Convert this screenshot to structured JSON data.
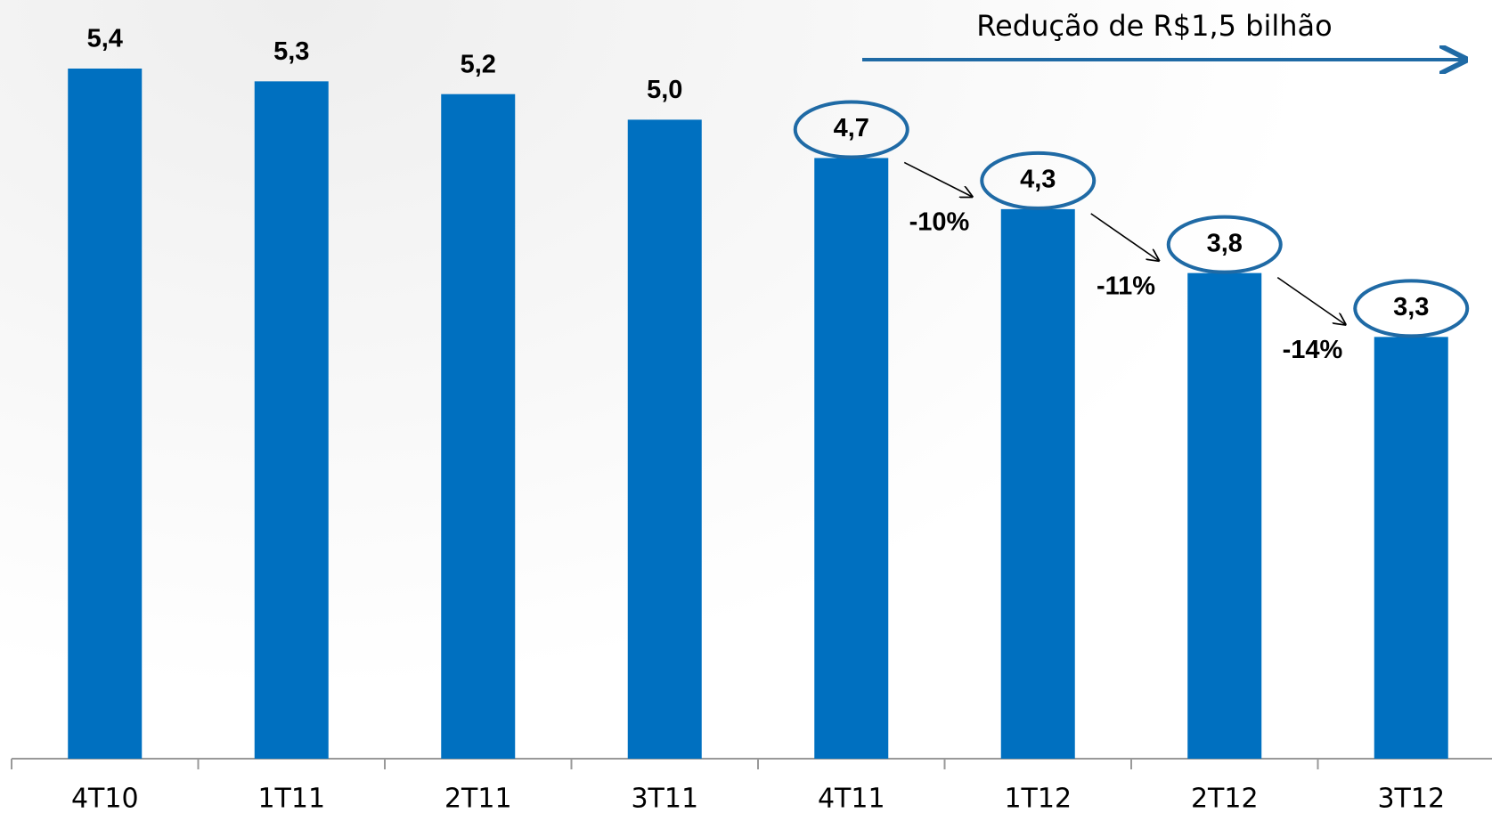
{
  "chart_data": {
    "type": "bar",
    "title": "Redução de R$1,5 bilhão",
    "categories": [
      "4T10",
      "1T11",
      "2T11",
      "3T11",
      "4T11",
      "1T12",
      "2T12",
      "3T12"
    ],
    "values": [
      5.4,
      5.3,
      5.2,
      5.0,
      4.7,
      4.3,
      3.8,
      3.3
    ],
    "value_labels": [
      "5,4",
      "5,3",
      "5,2",
      "5,0",
      "4,7",
      "4,3",
      "3,8",
      "3,3"
    ],
    "annotations": [
      "-10%",
      "-11%",
      "-14%"
    ],
    "color": "#0070c0",
    "ylim": [
      0,
      5.4
    ]
  }
}
